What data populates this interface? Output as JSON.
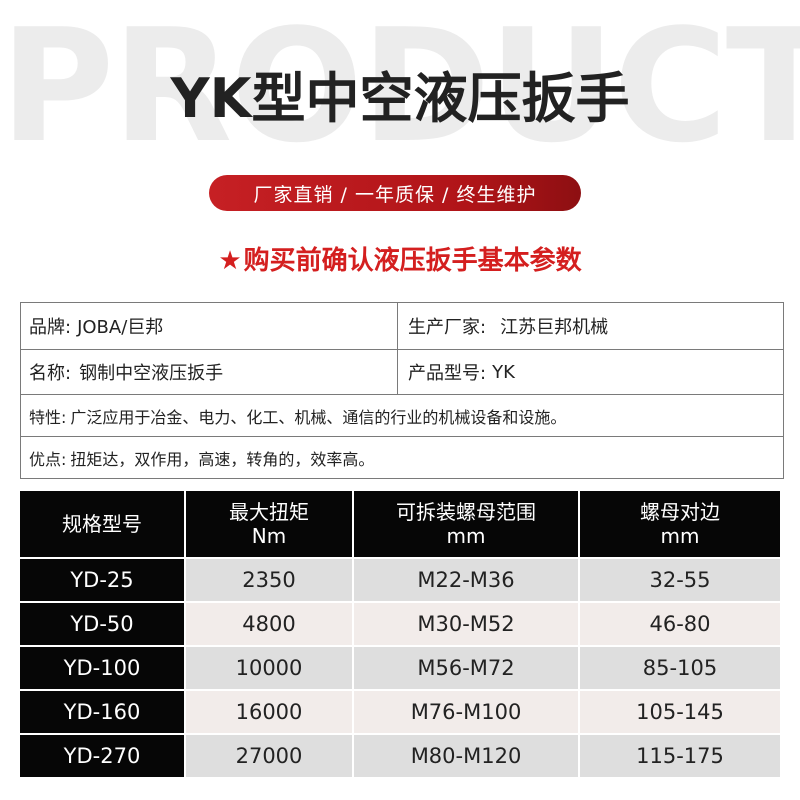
{
  "background_word": "PRODUCT",
  "title": "YK型中空液压扳手",
  "slogan": "厂家直销 / 一年质保 / 终生维护",
  "notice": {
    "star": "★",
    "text": "购买前确认液压扳手基本参数"
  },
  "info": {
    "brand_label": "品牌:",
    "brand_value": "JOBA/巨邦",
    "maker_label": "生产厂家:",
    "maker_value": "江苏巨邦机械",
    "name_label": "名称:",
    "name_value": "钢制中空液压扳手",
    "model_label": "产品型号:",
    "model_value": "YK",
    "feature_label": "特性:",
    "feature_value": "广泛应用于冶金、电力、化工、机械、通信的行业的机械设备和设施。",
    "advantage_label": "优点:",
    "advantage_value": "扭矩达，双作用，高速，转角的，效率高。"
  },
  "spec_table": {
    "headers": [
      {
        "line1": "规格型号",
        "line2": ""
      },
      {
        "line1": "最大扭矩",
        "line2": "Nm"
      },
      {
        "line1": "可拆装螺母范围",
        "line2": "mm"
      },
      {
        "line1": "螺母对边",
        "line2": "mm"
      }
    ],
    "rows": [
      [
        "YD-25",
        "2350",
        "M22-M36",
        "32-55"
      ],
      [
        "YD-50",
        "4800",
        "M30-M52",
        "46-80"
      ],
      [
        "YD-100",
        "10000",
        "M56-M72",
        "85-105"
      ],
      [
        "YD-160",
        "16000",
        "M76-M100",
        "105-145"
      ],
      [
        "YD-270",
        "27000",
        "M80-M120",
        "115-175"
      ]
    ]
  },
  "colors": {
    "accent_red": "#c62024",
    "notice_red": "#d41f1f",
    "table_black": "#060606"
  }
}
